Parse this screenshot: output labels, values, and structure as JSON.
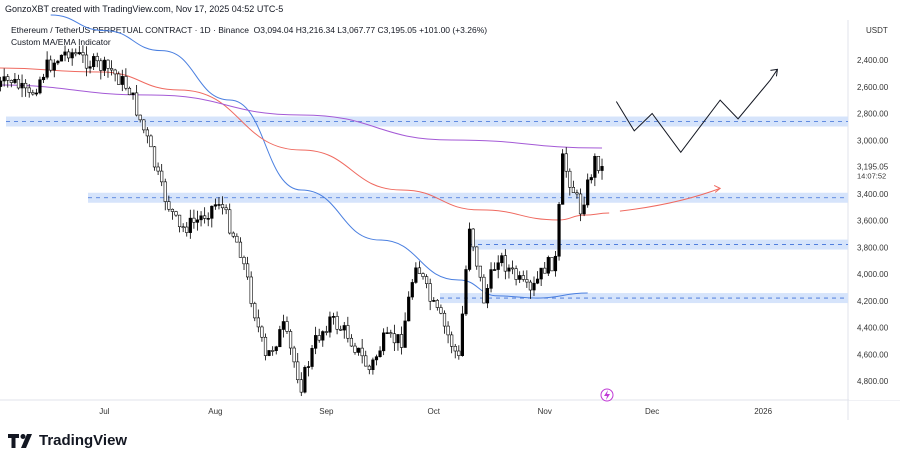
{
  "header": {
    "credit": "GonzoXBT created with TradingView.com, Nov 17, 2025 04:52 UTC-5",
    "symbol_line": "Ethereum / TetherUS PERPETUAL CONTRACT · 1D · Binance",
    "ohlc": "O3,094.04  H3,216.34  L3,067.77  C3,195.05  +101.00 (+3.26%)",
    "indicator": "Custom MA/EMA Indicator"
  },
  "footer": {
    "brand": "TradingView"
  },
  "colors": {
    "up": "#ffffff",
    "down": "#000000",
    "ma_blue": "#4a7fe0",
    "ma_red": "#ef6a60",
    "ma_purple": "#a45ad6",
    "zone": "#d6e4fb",
    "zone_line": "#3d6fd9",
    "projection": "#131722",
    "arrow": "#ef6a60",
    "axis_text": "#333"
  },
  "chart_data": {
    "type": "candlestick",
    "title": "Ethereum / TetherUS PERPETUAL CONTRACT · 1D · Binance",
    "y_axis_unit": "USDT",
    "y_axis_inverted": true,
    "ylim": [
      2200,
      4950
    ],
    "y_ticks": [
      "2,400.00",
      "2,600.00",
      "2,800.00",
      "3,000.00",
      "3,400.00",
      "3,600.00",
      "3,800.00",
      "4,000.00",
      "4,200.00",
      "4,400.00",
      "4,600.00",
      "4,800.00"
    ],
    "y_tick_values": [
      2400,
      2600,
      2800,
      3000,
      3400,
      3600,
      3800,
      4000,
      4200,
      4400,
      4600,
      4800
    ],
    "last_price_label": "3,195.05",
    "countdown": "14:07:52",
    "last_price": 3195.05,
    "x_start_date": "2025-06-01",
    "x_ticks": [
      {
        "label": "Jul",
        "day": 30
      },
      {
        "label": "Aug",
        "day": 61
      },
      {
        "label": "Sep",
        "day": 92
      },
      {
        "label": "Oct",
        "day": 122
      },
      {
        "label": "Nov",
        "day": 153
      },
      {
        "label": "Dec",
        "day": 183
      },
      {
        "label": "2026",
        "day": 214
      }
    ],
    "xlim_days": [
      -1,
      238
    ],
    "close_path_keypoints": [
      [
        0,
        2600
      ],
      [
        4,
        2550
      ],
      [
        9,
        2680
      ],
      [
        14,
        2450
      ],
      [
        20,
        2330
      ],
      [
        26,
        2420
      ],
      [
        32,
        2480
      ],
      [
        37,
        2620
      ],
      [
        42,
        3000
      ],
      [
        46,
        3370
      ],
      [
        51,
        3670
      ],
      [
        56,
        3600
      ],
      [
        62,
        3450
      ],
      [
        68,
        3820
      ],
      [
        75,
        4640
      ],
      [
        80,
        4400
      ],
      [
        85,
        4830
      ],
      [
        89,
        4500
      ],
      [
        93,
        4340
      ],
      [
        98,
        4450
      ],
      [
        104,
        4720
      ],
      [
        108,
        4500
      ],
      [
        113,
        4490
      ],
      [
        117,
        3900
      ],
      [
        121,
        4200
      ],
      [
        124,
        4340
      ],
      [
        129,
        4640
      ],
      [
        132,
        3630
      ],
      [
        136,
        4190
      ],
      [
        140,
        3860
      ],
      [
        144,
        4000
      ],
      [
        149,
        4150
      ],
      [
        153,
        3950
      ],
      [
        156,
        3900
      ],
      [
        158,
        3150
      ],
      [
        163,
        3520
      ],
      [
        167,
        3150
      ],
      [
        169,
        3195
      ]
    ],
    "series": [
      {
        "name": "MA blue",
        "points": [
          [
            15,
            2064
          ],
          [
            30,
            2180
          ],
          [
            46,
            2330
          ],
          [
            65,
            2699
          ],
          [
            85,
            3372
          ],
          [
            107,
            3746
          ],
          [
            129,
            4045
          ],
          [
            140,
            4164
          ],
          [
            151,
            4180
          ],
          [
            165,
            4142
          ]
        ]
      },
      {
        "name": "MA red",
        "points": [
          [
            0,
            2460
          ],
          [
            29,
            2490
          ],
          [
            51,
            2624
          ],
          [
            85,
            3073
          ],
          [
            113,
            3372
          ],
          [
            135,
            3521
          ],
          [
            157,
            3596
          ],
          [
            164,
            3560
          ],
          [
            171,
            3544
          ]
        ]
      },
      {
        "name": "MA purple",
        "points": [
          [
            0,
            2587
          ],
          [
            43,
            2662
          ],
          [
            85,
            2811
          ],
          [
            127,
            2998
          ],
          [
            169,
            3058
          ]
        ]
      }
    ],
    "zones": [
      {
        "price": 2860
      },
      {
        "price": 3430
      },
      {
        "price": 3780
      },
      {
        "price": 4180
      }
    ],
    "projection_path": [
      [
        173,
        2710
      ],
      [
        178,
        2930
      ],
      [
        183,
        2800
      ],
      [
        191,
        3090
      ],
      [
        202,
        2700
      ],
      [
        207,
        2840
      ],
      [
        216,
        2550
      ],
      [
        218,
        2470
      ]
    ],
    "arrow_curve": [
      [
        174,
        3530
      ],
      [
        190,
        3480
      ],
      [
        202,
        3360
      ]
    ]
  }
}
